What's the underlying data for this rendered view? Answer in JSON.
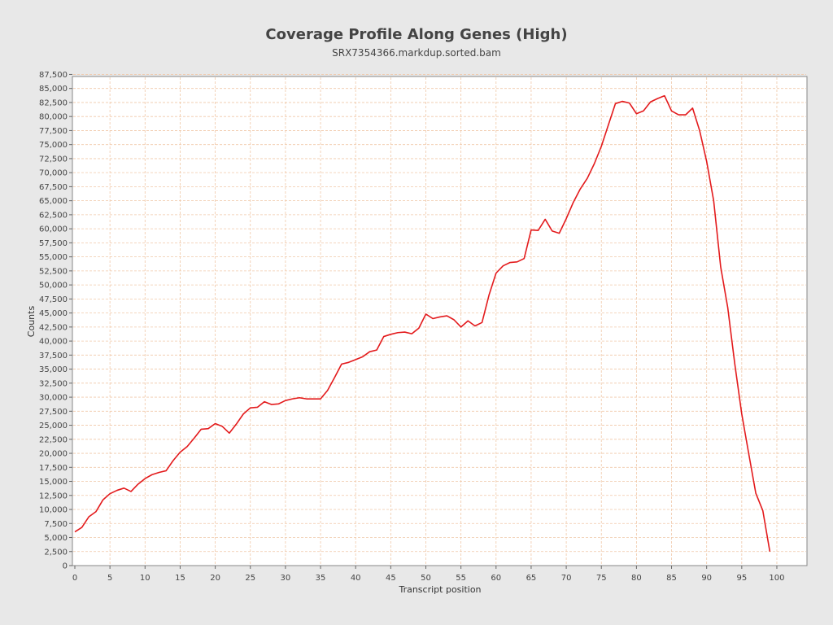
{
  "chart_data": {
    "type": "line",
    "title": "Coverage Profile Along Genes (High)",
    "subtitle": "SRX7354366.markdup.sorted.bam",
    "xlabel": "Transcript position",
    "ylabel": "Counts",
    "xlim": [
      0,
      104
    ],
    "ylim": [
      0,
      88000
    ],
    "grid": true,
    "colors": {
      "line": "#e31a1c",
      "grid": "#f0c8a8",
      "plot_bg": "#ffffff",
      "page_bg": "#e8e8e8"
    },
    "x_ticks": [
      0,
      5,
      10,
      15,
      20,
      25,
      30,
      35,
      40,
      45,
      50,
      55,
      60,
      65,
      70,
      75,
      80,
      85,
      90,
      95,
      100
    ],
    "x_tick_labels": [
      "0",
      "5",
      "10",
      "15",
      "20",
      "25",
      "30",
      "35",
      "40",
      "45",
      "50",
      "55",
      "60",
      "65",
      "70",
      "75",
      "80",
      "85",
      "90",
      "95",
      "100"
    ],
    "y_ticks": [
      0,
      2500,
      5000,
      7500,
      10000,
      12500,
      15000,
      17500,
      20000,
      22500,
      25000,
      27500,
      30000,
      32500,
      35000,
      37500,
      40000,
      42500,
      45000,
      47500,
      50000,
      52500,
      55000,
      57500,
      60000,
      62500,
      65000,
      67500,
      70000,
      72500,
      75000,
      77500,
      80000,
      82500,
      85000,
      87500
    ],
    "y_tick_labels": [
      "0",
      "2,500",
      "5,000",
      "7,500",
      "10,000",
      "12,500",
      "15,000",
      "17,500",
      "20,000",
      "22,500",
      "25,000",
      "27,500",
      "30,000",
      "32,500",
      "35,000",
      "37,500",
      "40,000",
      "42,500",
      "45,000",
      "47,500",
      "50,000",
      "52,500",
      "55,000",
      "57,500",
      "60,000",
      "62,500",
      "65,000",
      "67,500",
      "70,000",
      "72,500",
      "75,000",
      "77,500",
      "80,000",
      "82,500",
      "85,000",
      "87,500"
    ],
    "x": [
      0,
      1,
      2,
      3,
      4,
      5,
      6,
      7,
      8,
      9,
      10,
      11,
      12,
      13,
      14,
      15,
      16,
      17,
      18,
      19,
      20,
      21,
      22,
      23,
      24,
      25,
      26,
      27,
      28,
      29,
      30,
      31,
      32,
      33,
      34,
      35,
      36,
      37,
      38,
      39,
      40,
      41,
      42,
      43,
      44,
      45,
      46,
      47,
      48,
      49,
      50,
      51,
      52,
      53,
      54,
      55,
      56,
      57,
      58,
      59,
      60,
      61,
      62,
      63,
      64,
      65,
      66,
      67,
      68,
      69,
      70,
      71,
      72,
      73,
      74,
      75,
      76,
      77,
      78,
      79,
      80,
      81,
      82,
      83,
      84,
      85,
      86,
      87,
      88,
      89,
      90,
      91,
      92,
      93,
      94,
      95,
      96,
      97,
      98,
      99
    ],
    "series": [
      {
        "values": [
          6000,
          6800,
          8700,
          9600,
          11700,
          12800,
          13400,
          13800,
          13200,
          14500,
          15500,
          16200,
          16600,
          16900,
          18700,
          20200,
          21200,
          22700,
          24300,
          24400,
          25300,
          24800,
          23600,
          25200,
          27000,
          28100,
          28200,
          29200,
          28700,
          28800,
          29400,
          29700,
          29900,
          29700,
          29700,
          29700,
          31200,
          33500,
          35900,
          36200,
          36700,
          37200,
          38100,
          38400,
          40800,
          41200,
          41500,
          41600,
          41300,
          42300,
          44800,
          44000,
          44300,
          44500,
          43800,
          42500,
          43600,
          42700,
          43300,
          48200,
          52100,
          53400,
          54000,
          54100,
          54700,
          59800,
          59700,
          61700,
          59600,
          59200,
          61800,
          64700,
          67100,
          69000,
          71600,
          74700,
          78500,
          82300,
          82700,
          82400,
          80500,
          81000,
          82600,
          83200,
          83700,
          81000,
          80300,
          80300,
          81500,
          77500,
          72000,
          65000,
          53200,
          46000,
          36000,
          27000,
          19900,
          12900,
          9800,
          2500
        ]
      }
    ]
  }
}
